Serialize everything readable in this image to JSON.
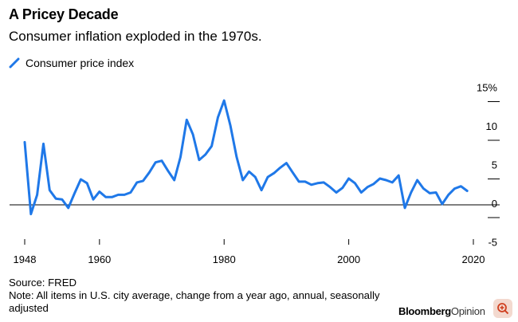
{
  "header": {
    "title": "A Pricey Decade",
    "subtitle": "Consumer inflation exploded in the 1970s."
  },
  "footer": {
    "source": "Source: FRED",
    "note": "Note: All items in U.S. city average, change from a year ago, annual, seasonally adjusted"
  },
  "brand": {
    "part1": "Bloomberg",
    "part2": "Opinion"
  },
  "colors": {
    "line": "#1f78e8",
    "zero_line": "#000000",
    "zoom_bg": "#f3d9cf",
    "zoom_icon": "#d04020"
  },
  "icons": {
    "zoom": "zoom-in-icon"
  },
  "chart_data": {
    "type": "line",
    "title": "A Pricey Decade",
    "subtitle": "Consumer inflation exploded in the 1970s.",
    "xlabel": "",
    "ylabel": "",
    "xlim": [
      1948,
      2019
    ],
    "ylim": [
      -5,
      15
    ],
    "x_ticks": [
      "1948",
      "1960",
      "1980",
      "2000",
      "2020"
    ],
    "y_ticks": [
      "15%",
      "10",
      "5",
      "0",
      "-5"
    ],
    "legend": "top-left",
    "grid": false,
    "series": [
      {
        "name": "Consumer price index",
        "x": [
          1948,
          1949,
          1950,
          1951,
          1952,
          1953,
          1954,
          1955,
          1956,
          1957,
          1958,
          1959,
          1960,
          1961,
          1962,
          1963,
          1964,
          1965,
          1966,
          1967,
          1968,
          1969,
          1970,
          1971,
          1972,
          1973,
          1974,
          1975,
          1976,
          1977,
          1978,
          1979,
          1980,
          1981,
          1982,
          1983,
          1984,
          1985,
          1986,
          1987,
          1988,
          1989,
          1990,
          1991,
          1992,
          1993,
          1994,
          1995,
          1996,
          1997,
          1998,
          1999,
          2000,
          2001,
          2002,
          2003,
          2004,
          2005,
          2006,
          2007,
          2008,
          2009,
          2010,
          2011,
          2012,
          2013,
          2014,
          2015,
          2016,
          2017,
          2018,
          2019
        ],
        "values": [
          8.1,
          -1.2,
          1.3,
          7.9,
          1.9,
          0.8,
          0.7,
          -0.4,
          1.5,
          3.3,
          2.8,
          0.7,
          1.7,
          1.0,
          1.0,
          1.3,
          1.3,
          1.6,
          2.9,
          3.1,
          4.2,
          5.5,
          5.7,
          4.4,
          3.2,
          6.2,
          11.0,
          9.1,
          5.8,
          6.5,
          7.6,
          11.3,
          13.5,
          10.3,
          6.2,
          3.2,
          4.3,
          3.6,
          1.9,
          3.6,
          4.1,
          4.8,
          5.4,
          4.2,
          3.0,
          3.0,
          2.6,
          2.8,
          2.9,
          2.3,
          1.6,
          2.2,
          3.4,
          2.8,
          1.6,
          2.3,
          2.7,
          3.4,
          3.2,
          2.9,
          3.8,
          -0.4,
          1.6,
          3.2,
          2.1,
          1.5,
          1.6,
          0.1,
          1.3,
          2.1,
          2.4,
          1.8
        ]
      }
    ]
  }
}
